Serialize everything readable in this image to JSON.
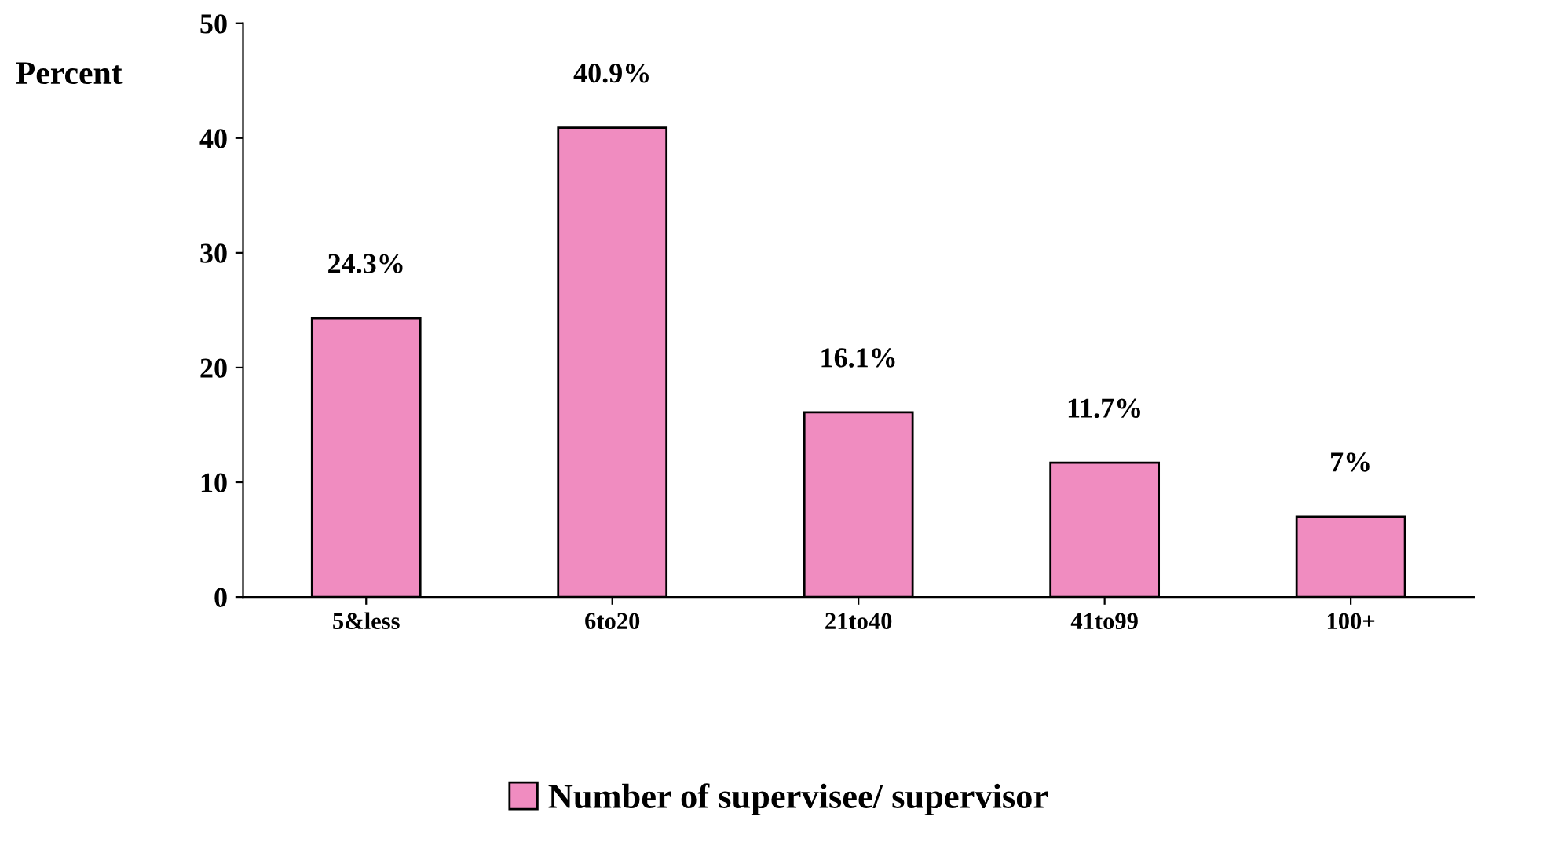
{
  "chart_data": {
    "type": "bar",
    "ylabel": "Percent",
    "categories": [
      "5&less",
      "6to20",
      "21to40",
      "41to99",
      "100+"
    ],
    "series": [
      {
        "name": "Number of supervisee/ supervisor",
        "color": "#f08cc0",
        "values": [
          24.3,
          40.9,
          16.1,
          11.7,
          7
        ],
        "value_labels": [
          "24.3%",
          "40.9%",
          "16.1%",
          "11.7%",
          "7%"
        ]
      }
    ],
    "ylim": [
      0,
      50
    ],
    "yticks": [
      0,
      10,
      20,
      30,
      40,
      50
    ],
    "grid": false,
    "legend": "bottom"
  }
}
